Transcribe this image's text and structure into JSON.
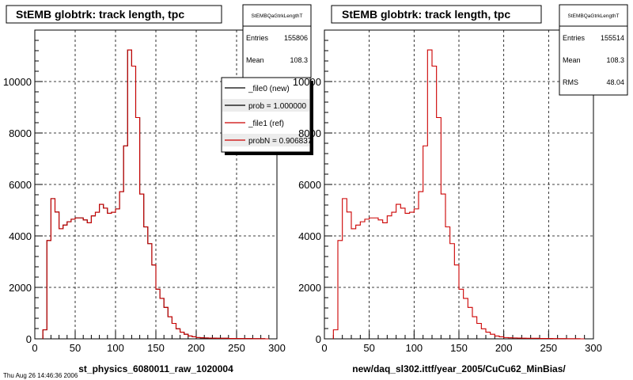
{
  "footer": "Thu Aug 26 14:46:36 2006",
  "chart_data": [
    {
      "type": "histogram",
      "title": "StEMB globtrk: track length, tpc",
      "xlabel": "st_physics_6080011_raw_1020004",
      "xlim": [
        0,
        300
      ],
      "ylim": [
        0,
        12000
      ],
      "xticks": [
        0,
        50,
        100,
        150,
        200,
        250,
        300
      ],
      "yticks": [
        0,
        2000,
        4000,
        6000,
        8000,
        10000
      ],
      "grid": true,
      "bin_edges": [
        10,
        15,
        20,
        25,
        30,
        35,
        40,
        45,
        50,
        55,
        60,
        65,
        70,
        75,
        80,
        85,
        90,
        95,
        100,
        105,
        110,
        115,
        120,
        125,
        130,
        135,
        140,
        145,
        150,
        155,
        160,
        165,
        170,
        175,
        180,
        185,
        190,
        195,
        200,
        205,
        210,
        215,
        220,
        225,
        230,
        235,
        240,
        245,
        250,
        255,
        260,
        265,
        270,
        275,
        280,
        285,
        290
      ],
      "series": [
        {
          "name": "_file0 (new)",
          "color": "#000000",
          "values": [
            350,
            3820,
            5450,
            4930,
            4280,
            4420,
            4550,
            4650,
            4700,
            4700,
            4620,
            4510,
            4780,
            4920,
            5230,
            5080,
            4880,
            4920,
            5050,
            5720,
            7500,
            11230,
            10600,
            8600,
            5630,
            4350,
            3700,
            2870,
            1930,
            1570,
            1220,
            860,
            600,
            390,
            260,
            180,
            110,
            80,
            50,
            40,
            35,
            30,
            25,
            20,
            20,
            20,
            15,
            15,
            15,
            10,
            10,
            10,
            5,
            5,
            5,
            0
          ]
        },
        {
          "name": "_file1 (ref)",
          "color": "#cc0000",
          "values": [
            350,
            3820,
            5450,
            4930,
            4280,
            4420,
            4550,
            4650,
            4700,
            4700,
            4620,
            4510,
            4780,
            4920,
            5230,
            5080,
            4880,
            4920,
            5050,
            5720,
            7500,
            11230,
            10600,
            8600,
            5630,
            4350,
            3700,
            2870,
            1930,
            1570,
            1220,
            860,
            600,
            390,
            260,
            180,
            110,
            80,
            50,
            40,
            35,
            30,
            25,
            20,
            20,
            20,
            15,
            15,
            15,
            10,
            10,
            10,
            5,
            5,
            5,
            0
          ]
        }
      ],
      "stats": {
        "title": "StEMBQaGtrkLengthT",
        "entries_label": "Entries",
        "entries": "155806",
        "mean_label": "Mean",
        "mean": "108.3"
      },
      "legend": {
        "entries": [
          "_file0 (new)",
          "prob = 1.000000",
          "_file1 (ref)",
          "probN = 0.906837"
        ],
        "colors": [
          "#000000",
          "#000000",
          "#cc0000",
          "#cc0000"
        ],
        "placement": "top-right"
      }
    },
    {
      "type": "histogram",
      "title": "StEMB globtrk: track length, tpc",
      "xlabel": "new/daq_sl302.ittf/year_2005/CuCu62_MinBias/",
      "xlim": [
        0,
        300
      ],
      "ylim": [
        0,
        12000
      ],
      "xticks": [
        0,
        50,
        100,
        150,
        200,
        250,
        300
      ],
      "yticks": [
        0,
        2000,
        4000,
        6000,
        8000,
        10000
      ],
      "grid": true,
      "bin_edges": [
        10,
        15,
        20,
        25,
        30,
        35,
        40,
        45,
        50,
        55,
        60,
        65,
        70,
        75,
        80,
        85,
        90,
        95,
        100,
        105,
        110,
        115,
        120,
        125,
        130,
        135,
        140,
        145,
        150,
        155,
        160,
        165,
        170,
        175,
        180,
        185,
        190,
        195,
        200,
        205,
        210,
        215,
        220,
        225,
        230,
        235,
        240,
        245,
        250,
        255,
        260,
        265,
        270,
        275,
        280,
        285,
        290
      ],
      "series": [
        {
          "name": "_file1 (ref)",
          "color": "#cc0000",
          "values": [
            350,
            3820,
            5450,
            4930,
            4280,
            4420,
            4550,
            4650,
            4700,
            4700,
            4620,
            4510,
            4780,
            4920,
            5230,
            5080,
            4880,
            4920,
            5050,
            5720,
            7500,
            11230,
            10600,
            8600,
            5630,
            4350,
            3700,
            2870,
            1930,
            1570,
            1220,
            860,
            600,
            390,
            260,
            180,
            110,
            80,
            50,
            40,
            35,
            30,
            25,
            20,
            20,
            20,
            15,
            15,
            15,
            10,
            10,
            10,
            5,
            5,
            5,
            0
          ]
        }
      ],
      "stats": {
        "title": "StEMBQaGtrkLengthT",
        "entries_label": "Entries",
        "entries": "155514",
        "mean_label": "Mean",
        "mean": "108.3",
        "rms_label": "RMS",
        "rms": "48.04"
      }
    }
  ]
}
